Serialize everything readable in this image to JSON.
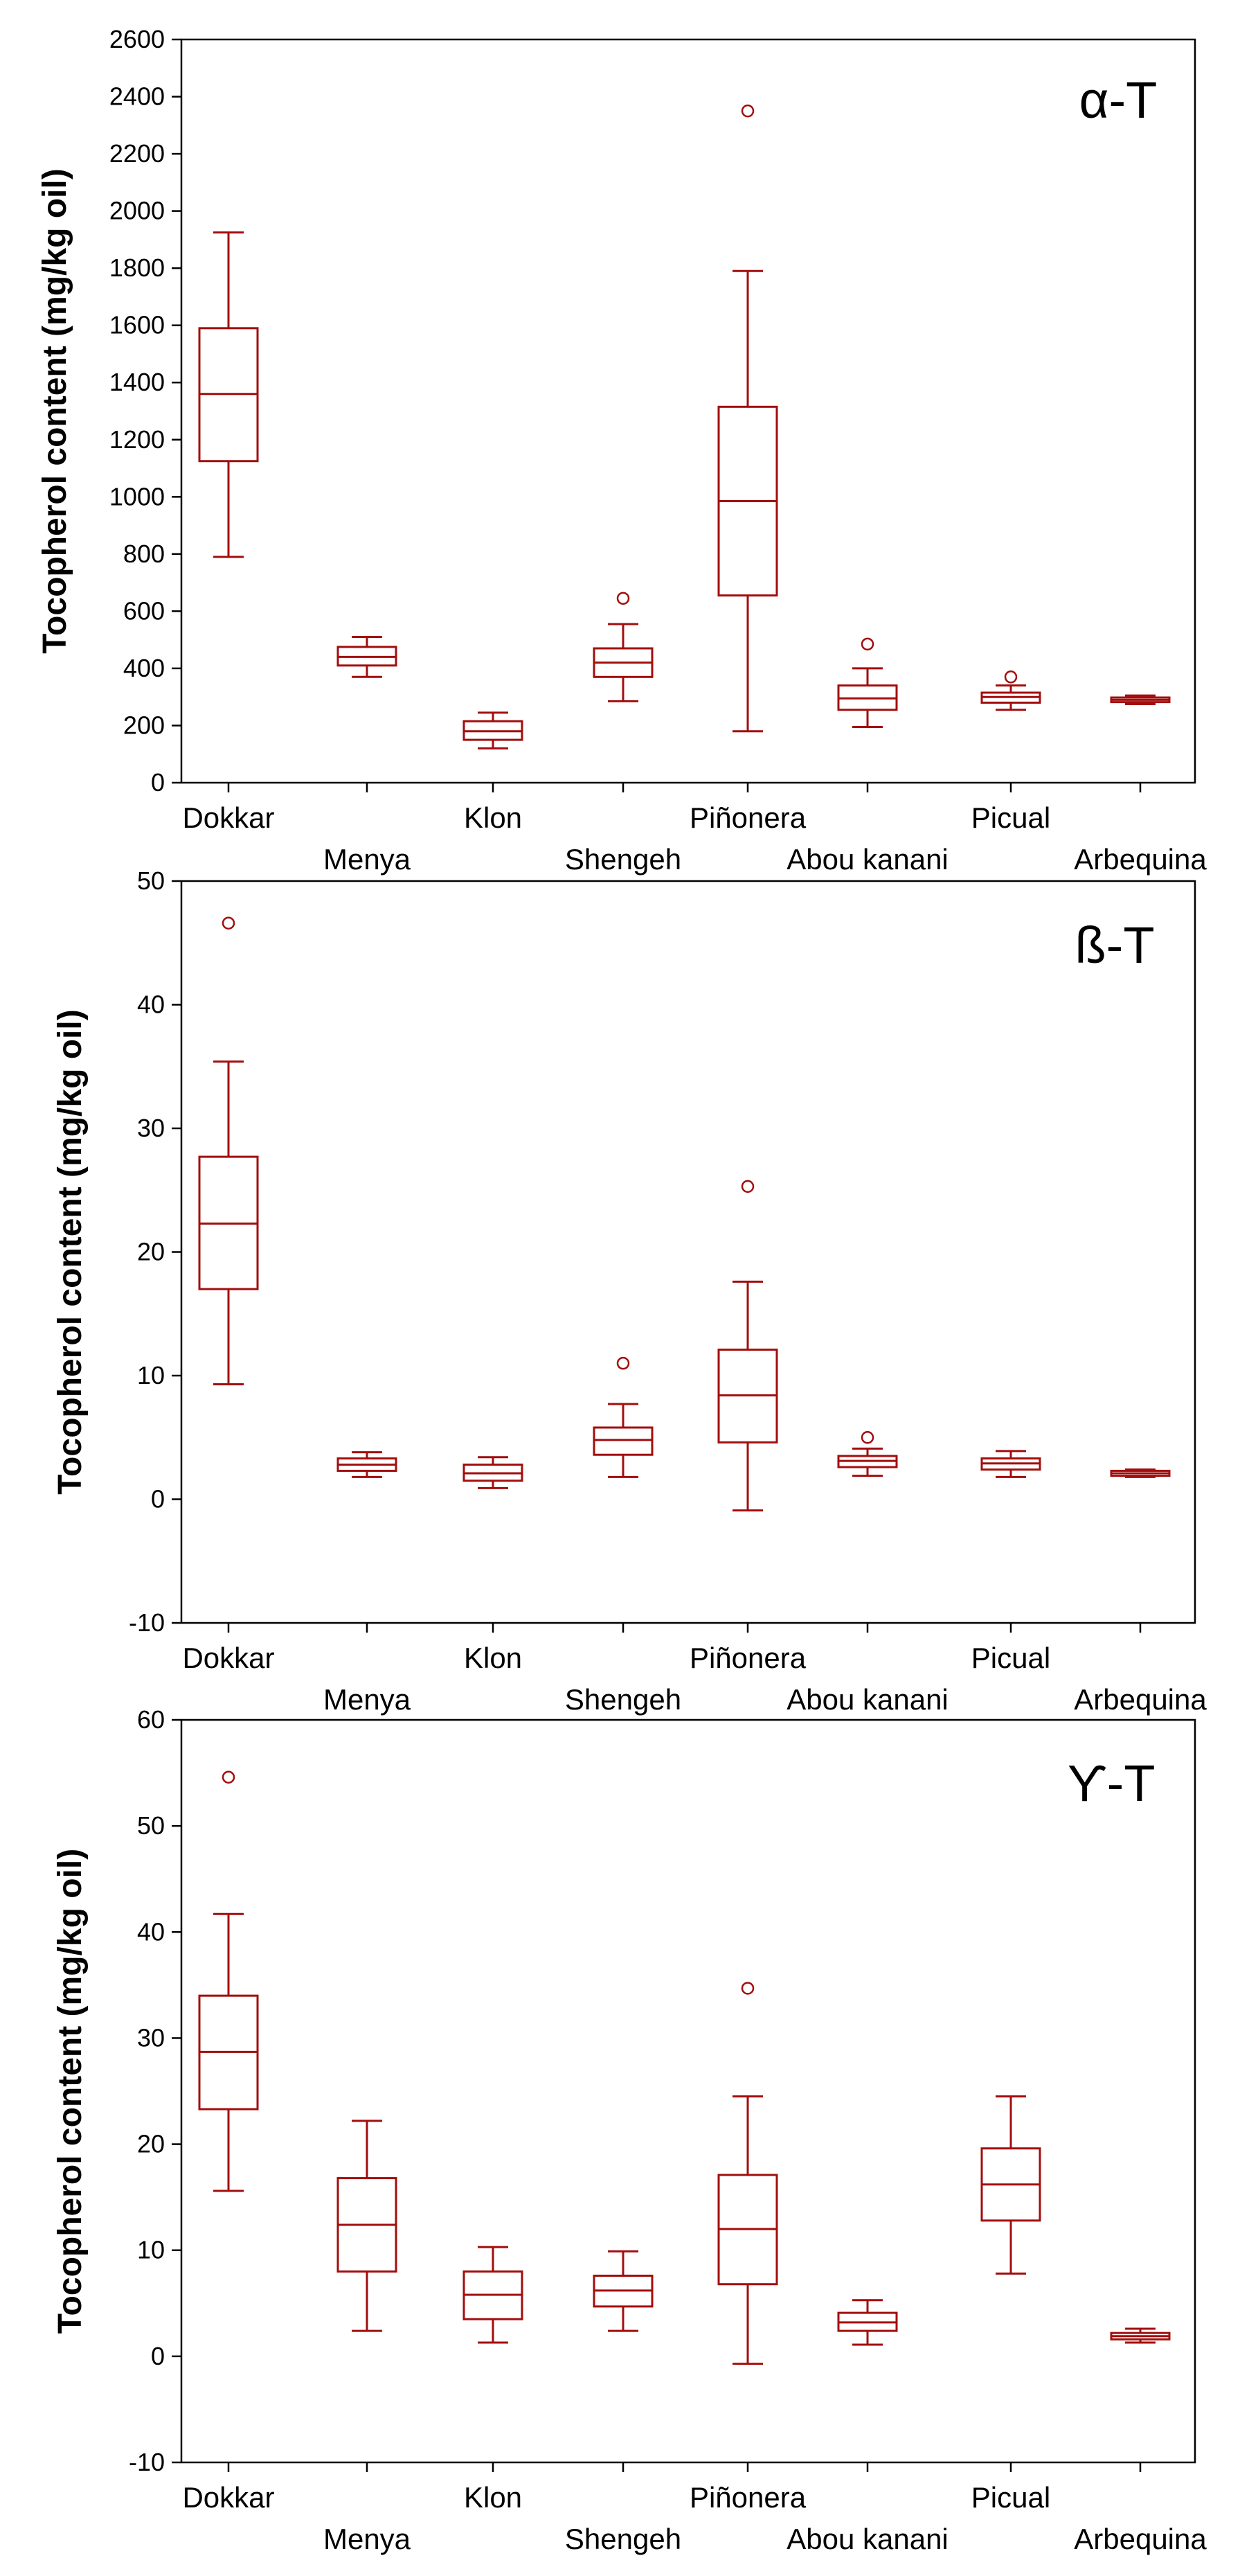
{
  "colors": {
    "box": "#a30d0d",
    "axis": "#000000",
    "background": "#ffffff"
  },
  "chart_data": [
    {
      "type": "box",
      "title": "α-T",
      "ylabel": "Tocopherol content (mg/kg oil)",
      "ylim": [
        0,
        2600
      ],
      "yticks": [
        0,
        200,
        400,
        600,
        800,
        1000,
        1200,
        1400,
        1600,
        1800,
        2000,
        2200,
        2400,
        2600
      ],
      "categories": [
        "Dokkar",
        "Menya",
        "Klon",
        "Shengeh",
        "Piñonera",
        "Abou kanani",
        "Picual",
        "Arbequina"
      ],
      "boxes": [
        {
          "name": "Dokkar",
          "whisker_low": 790,
          "q1": 1125,
          "median": 1360,
          "q3": 1590,
          "whisker_high": 1925,
          "outliers": []
        },
        {
          "name": "Menya",
          "whisker_low": 370,
          "q1": 410,
          "median": 440,
          "q3": 475,
          "whisker_high": 510,
          "outliers": []
        },
        {
          "name": "Klon",
          "whisker_low": 120,
          "q1": 150,
          "median": 180,
          "q3": 215,
          "whisker_high": 245,
          "outliers": []
        },
        {
          "name": "Shengeh",
          "whisker_low": 285,
          "q1": 370,
          "median": 420,
          "q3": 470,
          "whisker_high": 555,
          "outliers": [
            645
          ]
        },
        {
          "name": "Piñonera",
          "whisker_low": 180,
          "q1": 655,
          "median": 985,
          "q3": 1315,
          "whisker_high": 1790,
          "outliers": [
            2350
          ]
        },
        {
          "name": "Abou kanani",
          "whisker_low": 195,
          "q1": 255,
          "median": 295,
          "q3": 340,
          "whisker_high": 400,
          "outliers": [
            485
          ]
        },
        {
          "name": "Picual",
          "whisker_low": 255,
          "q1": 280,
          "median": 300,
          "q3": 315,
          "whisker_high": 340,
          "outliers": [
            370
          ]
        },
        {
          "name": "Arbequina",
          "whisker_low": 275,
          "q1": 282,
          "median": 290,
          "q3": 298,
          "whisker_high": 305,
          "outliers": []
        }
      ]
    },
    {
      "type": "box",
      "title": "ß-T",
      "ylabel": "Tocopherol content (mg/kg oil)",
      "ylim": [
        -10,
        50
      ],
      "yticks": [
        -10,
        0,
        10,
        20,
        30,
        40,
        50
      ],
      "categories": [
        "Dokkar",
        "Menya",
        "Klon",
        "Shengeh",
        "Piñonera",
        "Abou kanani",
        "Picual",
        "Arbequina"
      ],
      "boxes": [
        {
          "name": "Dokkar",
          "whisker_low": 9.3,
          "q1": 17.0,
          "median": 22.3,
          "q3": 27.7,
          "whisker_high": 35.4,
          "outliers": [
            46.6
          ]
        },
        {
          "name": "Menya",
          "whisker_low": 1.8,
          "q1": 2.3,
          "median": 2.8,
          "q3": 3.3,
          "whisker_high": 3.8,
          "outliers": []
        },
        {
          "name": "Klon",
          "whisker_low": 0.9,
          "q1": 1.5,
          "median": 2.1,
          "q3": 2.8,
          "whisker_high": 3.4,
          "outliers": []
        },
        {
          "name": "Shengeh",
          "whisker_low": 1.8,
          "q1": 3.6,
          "median": 4.8,
          "q3": 5.8,
          "whisker_high": 7.7,
          "outliers": [
            11.0
          ]
        },
        {
          "name": "Piñonera",
          "whisker_low": -0.9,
          "q1": 4.6,
          "median": 8.4,
          "q3": 12.1,
          "whisker_high": 17.6,
          "outliers": [
            25.3
          ]
        },
        {
          "name": "Abou kanani",
          "whisker_low": 1.9,
          "q1": 2.6,
          "median": 3.1,
          "q3": 3.5,
          "whisker_high": 4.1,
          "outliers": [
            5.0
          ]
        },
        {
          "name": "Picual",
          "whisker_low": 1.8,
          "q1": 2.4,
          "median": 2.9,
          "q3": 3.3,
          "whisker_high": 3.9,
          "outliers": []
        },
        {
          "name": "Arbequina",
          "whisker_low": 1.8,
          "q1": 1.9,
          "median": 2.1,
          "q3": 2.3,
          "whisker_high": 2.4,
          "outliers": []
        }
      ]
    },
    {
      "type": "box",
      "title": "ϒ-T",
      "ylabel": "Tocopherol content (mg/kg oil)",
      "ylim": [
        -10,
        60
      ],
      "yticks": [
        -10,
        0,
        10,
        20,
        30,
        40,
        50,
        60
      ],
      "categories": [
        "Dokkar",
        "Menya",
        "Klon",
        "Shengeh",
        "Piñonera",
        "Abou kanani",
        "Picual",
        "Arbequina"
      ],
      "boxes": [
        {
          "name": "Dokkar",
          "whisker_low": 15.6,
          "q1": 23.3,
          "median": 28.7,
          "q3": 34.0,
          "whisker_high": 41.7,
          "outliers": [
            54.6
          ]
        },
        {
          "name": "Menya",
          "whisker_low": 2.4,
          "q1": 8.0,
          "median": 12.4,
          "q3": 16.8,
          "whisker_high": 22.2,
          "outliers": []
        },
        {
          "name": "Klon",
          "whisker_low": 1.3,
          "q1": 3.5,
          "median": 5.8,
          "q3": 8.0,
          "whisker_high": 10.3,
          "outliers": []
        },
        {
          "name": "Shengeh",
          "whisker_low": 2.4,
          "q1": 4.7,
          "median": 6.2,
          "q3": 7.6,
          "whisker_high": 9.9,
          "outliers": []
        },
        {
          "name": "Piñonera",
          "whisker_low": -0.7,
          "q1": 6.8,
          "median": 12.0,
          "q3": 17.1,
          "whisker_high": 24.5,
          "outliers": [
            34.7
          ]
        },
        {
          "name": "Abou kanani",
          "whisker_low": 1.1,
          "q1": 2.4,
          "median": 3.2,
          "q3": 4.1,
          "whisker_high": 5.3,
          "outliers": []
        },
        {
          "name": "Picual",
          "whisker_low": 7.8,
          "q1": 12.8,
          "median": 16.2,
          "q3": 19.6,
          "whisker_high": 24.5,
          "outliers": []
        },
        {
          "name": "Arbequina",
          "whisker_low": 1.3,
          "q1": 1.6,
          "median": 1.9,
          "q3": 2.2,
          "whisker_high": 2.6,
          "outliers": []
        }
      ]
    }
  ]
}
